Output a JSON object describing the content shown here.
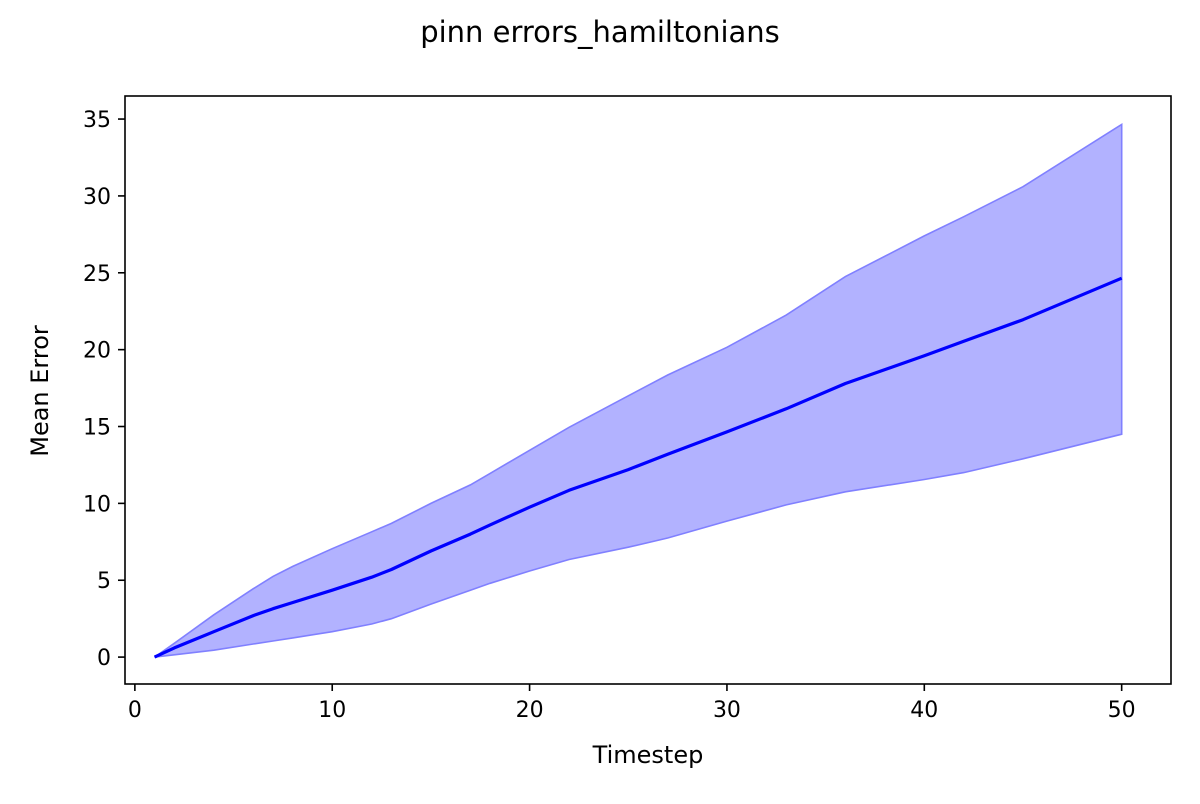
{
  "chart_data": {
    "type": "area",
    "title": "pinn errors_hamiltonians",
    "xlabel": "Timestep",
    "ylabel": "Mean Error",
    "xlim": [
      -0.5,
      52.5
    ],
    "ylim": [
      -1.75,
      36.5
    ],
    "xticks": [
      0,
      10,
      20,
      30,
      40,
      50
    ],
    "yticks": [
      0,
      5,
      10,
      15,
      20,
      25,
      30,
      35
    ],
    "grid": false,
    "legend": "none",
    "x": [
      1,
      2,
      4,
      6,
      7,
      8,
      10,
      12,
      13,
      15,
      17,
      18,
      20,
      22,
      25,
      27,
      30,
      33,
      36,
      40,
      42,
      45,
      50
    ],
    "series": [
      {
        "role": "mean",
        "color": "#0000ff",
        "values": [
          0.0,
          0.6,
          1.65,
          2.7,
          3.15,
          3.55,
          4.35,
          5.2,
          5.7,
          6.9,
          8.0,
          8.6,
          9.75,
          10.85,
          12.2,
          13.2,
          14.65,
          16.15,
          17.8,
          19.6,
          20.55,
          21.95,
          24.65
        ]
      },
      {
        "role": "upper",
        "color": "#0000ff",
        "values": [
          0.0,
          0.9,
          2.75,
          4.45,
          5.25,
          5.9,
          7.05,
          8.15,
          8.7,
          10.0,
          11.2,
          11.95,
          13.45,
          14.95,
          17.0,
          18.35,
          20.15,
          22.25,
          24.75,
          27.4,
          28.65,
          30.6,
          34.65
        ]
      },
      {
        "role": "lower",
        "color": "#0000ff",
        "values": [
          0.0,
          0.15,
          0.45,
          0.85,
          1.05,
          1.25,
          1.65,
          2.15,
          2.5,
          3.45,
          4.35,
          4.8,
          5.6,
          6.35,
          7.15,
          7.75,
          8.85,
          9.9,
          10.75,
          11.55,
          12.0,
          12.9,
          14.5
        ]
      }
    ],
    "band_fill": "#b2b2ff",
    "band_edge": "#8080ff",
    "line_color": "#0000ff"
  }
}
